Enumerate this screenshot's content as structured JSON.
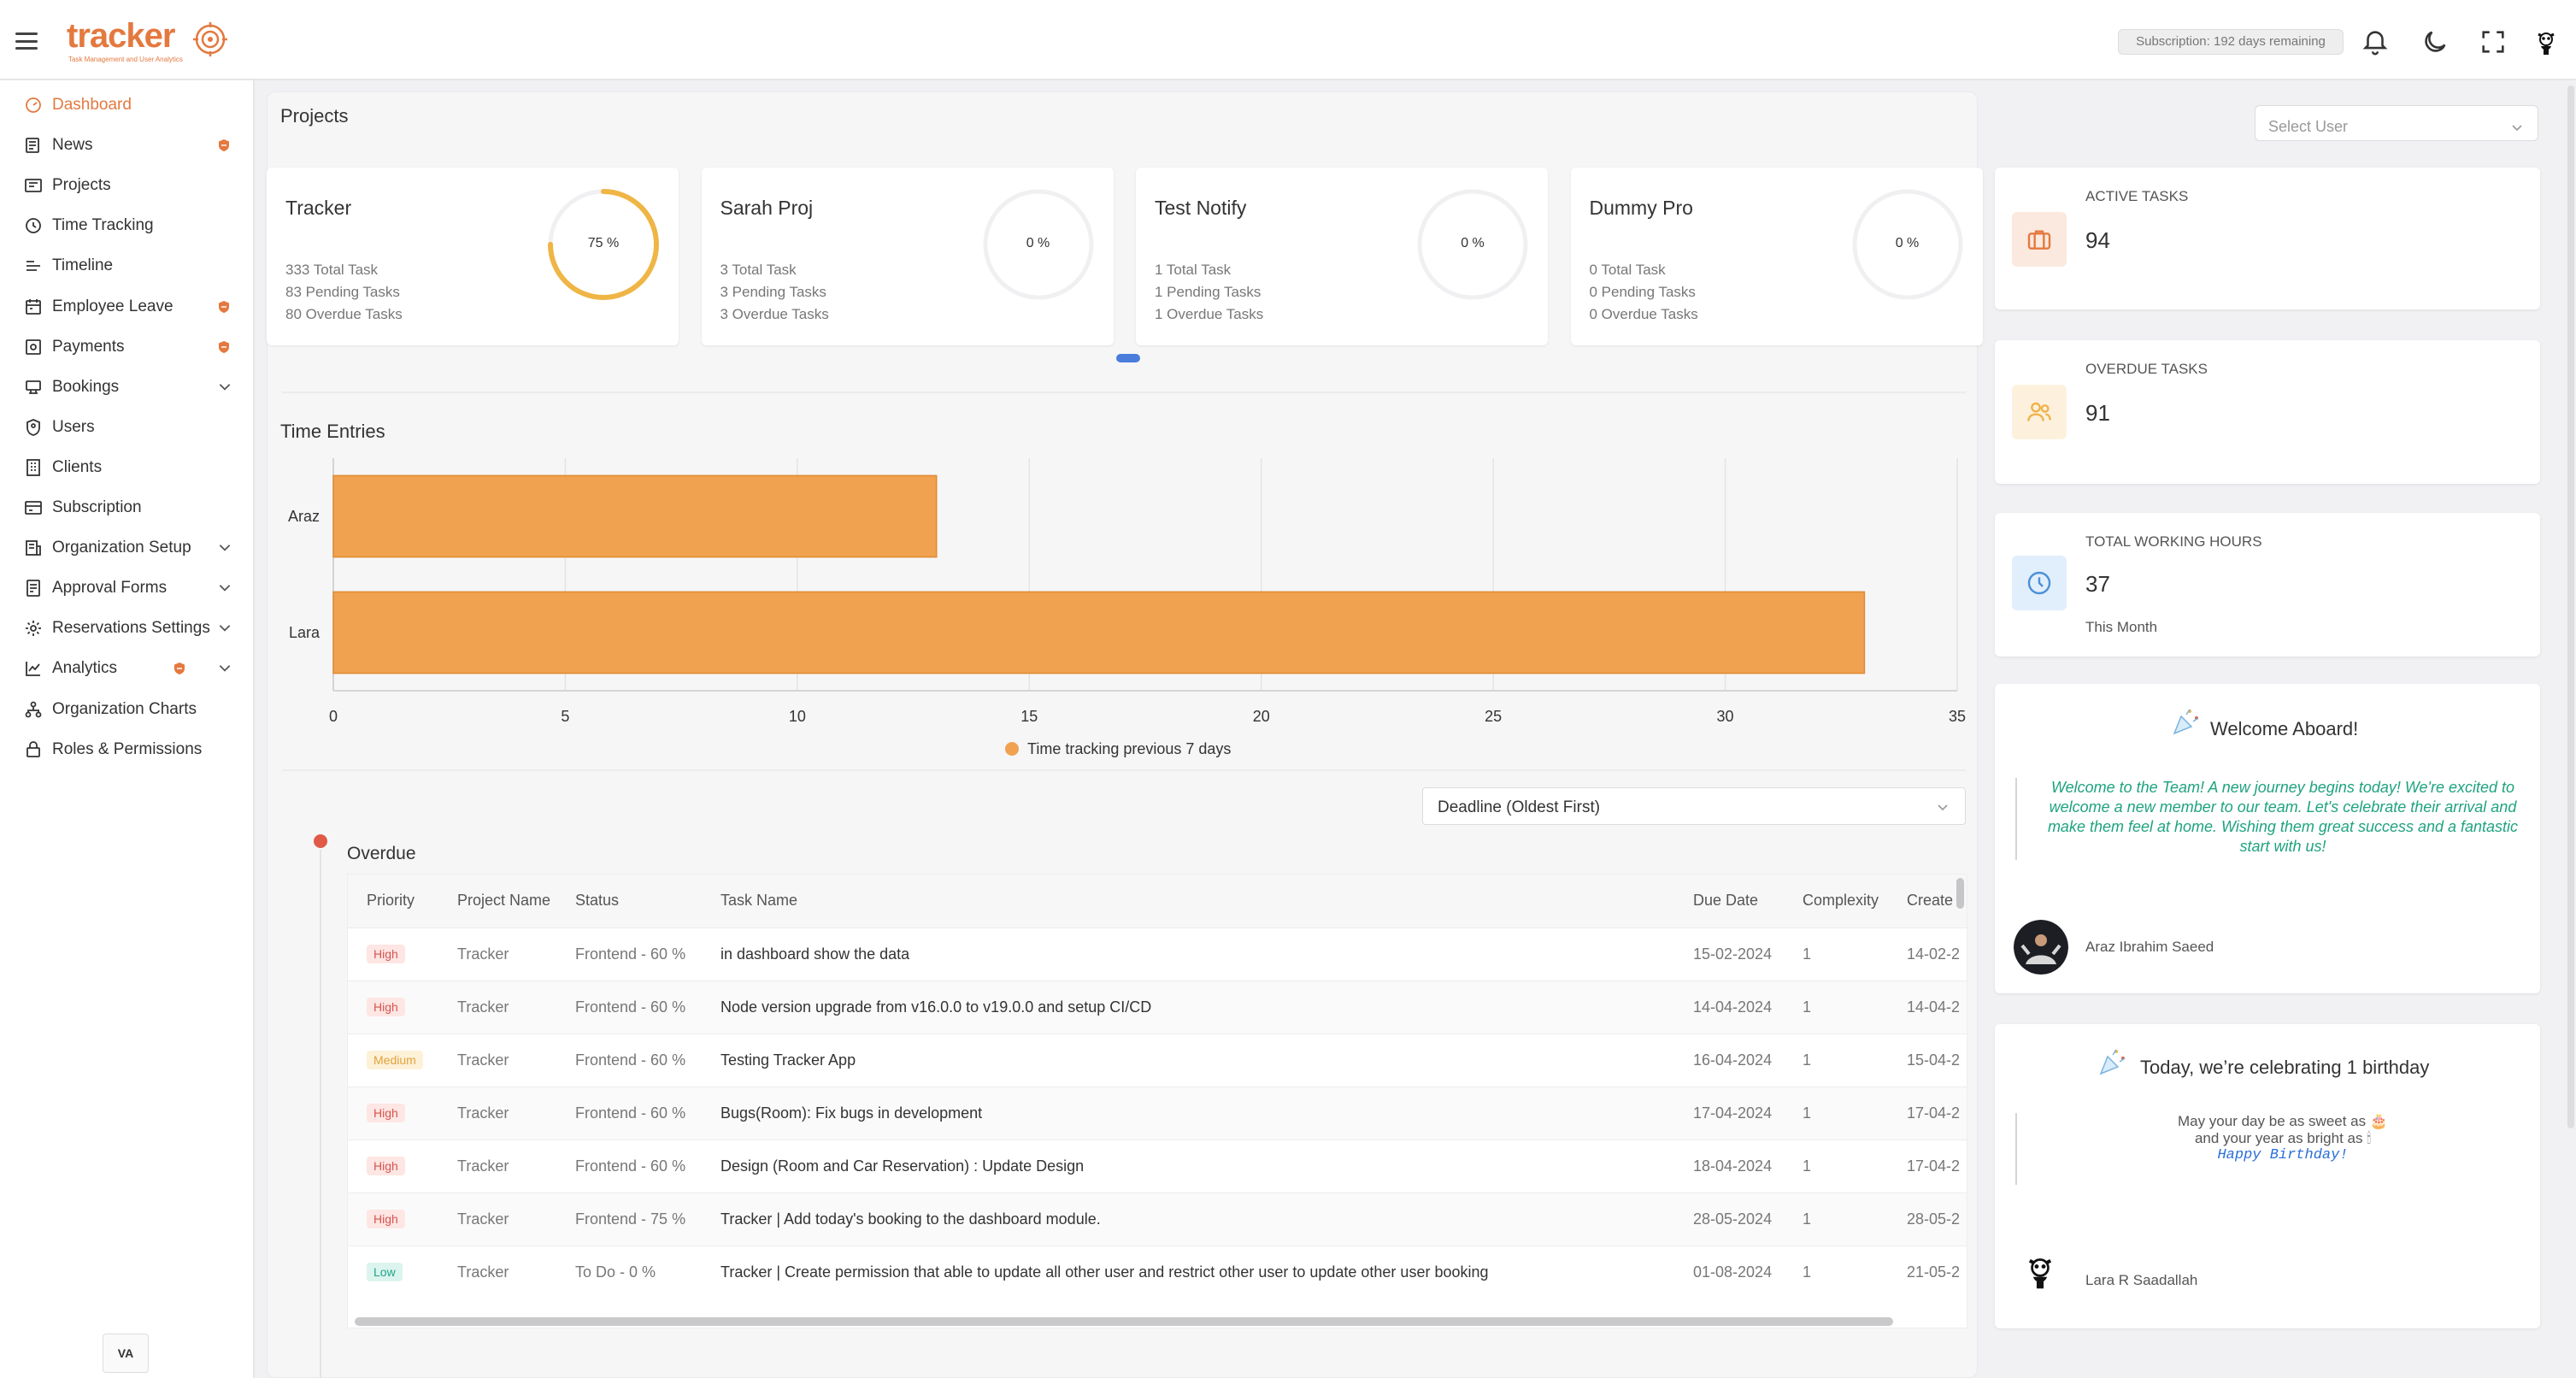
{
  "header": {
    "logo_text": "tracker",
    "logo_subtitle": "Task Management and User Analytics",
    "subscription": "Subscription: 192 days remaining",
    "icons": [
      "bell-icon",
      "moon-icon",
      "fullscreen-icon",
      "user-avatar-icon"
    ]
  },
  "sidebar": {
    "items": [
      {
        "label": "Dashboard",
        "icon": "dashboard-icon",
        "active": true
      },
      {
        "label": "News",
        "icon": "news-icon",
        "badge": true
      },
      {
        "label": "Projects",
        "icon": "projects-icon"
      },
      {
        "label": "Time Tracking",
        "icon": "clock-icon"
      },
      {
        "label": "Timeline",
        "icon": "timeline-icon"
      },
      {
        "label": "Employee Leave",
        "icon": "calendar-icon",
        "badge": true
      },
      {
        "label": "Payments",
        "icon": "payments-icon",
        "badge": true
      },
      {
        "label": "Bookings",
        "icon": "bookings-icon",
        "expandable": true
      },
      {
        "label": "Users",
        "icon": "shield-user-icon"
      },
      {
        "label": "Clients",
        "icon": "building-icon"
      },
      {
        "label": "Subscription",
        "icon": "subscription-icon"
      },
      {
        "label": "Organization Setup",
        "icon": "org-setup-icon",
        "expandable": true
      },
      {
        "label": "Approval Forms",
        "icon": "approval-forms-icon",
        "expandable": true
      },
      {
        "label": "Reservations Settings",
        "icon": "gear-icon",
        "expandable": true
      },
      {
        "label": "Analytics",
        "icon": "analytics-icon",
        "expandable": true,
        "badge": true
      },
      {
        "label": "Organization Charts",
        "icon": "org-chart-icon"
      },
      {
        "label": "Roles & Permissions",
        "icon": "lock-icon"
      }
    ],
    "footer_logo": "VA"
  },
  "projects": {
    "title": "Projects",
    "select_user_placeholder": "Select User",
    "cards": [
      {
        "name": "Tracker",
        "total": "333 Total Task",
        "pending": "83 Pending Tasks",
        "overdue": "80 Overdue Tasks",
        "percent": 75,
        "percent_label": "75 %"
      },
      {
        "name": "Sarah Proj",
        "total": "3 Total Task",
        "pending": "3 Pending Tasks",
        "overdue": "3 Overdue Tasks",
        "percent": 0,
        "percent_label": "0 %"
      },
      {
        "name": "Test Notify",
        "total": "1 Total Task",
        "pending": "1 Pending Tasks",
        "overdue": "1 Overdue Tasks",
        "percent": 0,
        "percent_label": "0 %"
      },
      {
        "name": "Dummy Pro",
        "total": "0 Total Task",
        "pending": "0 Pending Tasks",
        "overdue": "0 Overdue Tasks",
        "percent": 0,
        "percent_label": "0 %"
      }
    ],
    "carousel_pages": 2,
    "carousel_active": 0
  },
  "time_entries": {
    "title": "Time Entries"
  },
  "chart_data": {
    "type": "bar",
    "orientation": "horizontal",
    "categories": [
      "Araz",
      "Lara"
    ],
    "series": [
      {
        "name": "Time tracking previous 7 days",
        "values": [
          13,
          33
        ],
        "color": "#f0a250"
      }
    ],
    "xlim": [
      0,
      35
    ],
    "xticks": [
      0,
      5,
      10,
      15,
      20,
      25,
      30,
      35
    ],
    "grid": true,
    "legend": "bottom"
  },
  "overdue": {
    "sort_value": "Deadline (Oldest First)",
    "title": "Overdue",
    "columns": [
      "Priority",
      "Project Name",
      "Status",
      "Task Name",
      "Due Date",
      "Complexity",
      "Create"
    ],
    "rows": [
      {
        "priority": "High",
        "project": "Tracker",
        "status": "Frontend - 60 %",
        "task": "in dashboard show the data",
        "due": "15-02-2024",
        "complexity": "1",
        "created": "14-02-2"
      },
      {
        "priority": "High",
        "project": "Tracker",
        "status": "Frontend - 60 %",
        "task": "Node version upgrade from v16.0.0 to v19.0.0 and setup CI/CD",
        "due": "14-04-2024",
        "complexity": "1",
        "created": "14-04-2"
      },
      {
        "priority": "Medium",
        "project": "Tracker",
        "status": "Frontend - 60 %",
        "task": "Testing Tracker App",
        "due": "16-04-2024",
        "complexity": "1",
        "created": "15-04-2"
      },
      {
        "priority": "High",
        "project": "Tracker",
        "status": "Frontend - 60 %",
        "task": "Bugs(Room): Fix bugs in development",
        "due": "17-04-2024",
        "complexity": "1",
        "created": "17-04-2"
      },
      {
        "priority": "High",
        "project": "Tracker",
        "status": "Frontend - 60 %",
        "task": "Design (Room and Car Reservation) : Update Design",
        "due": "18-04-2024",
        "complexity": "1",
        "created": "17-04-2"
      },
      {
        "priority": "High",
        "project": "Tracker",
        "status": "Frontend - 75 %",
        "task": "Tracker | Add today's booking to the dashboard module.",
        "due": "28-05-2024",
        "complexity": "1",
        "created": "28-05-2"
      },
      {
        "priority": "Low",
        "project": "Tracker",
        "status": "To Do - 0 %",
        "task": "Tracker | Create permission that able to update all other user and restrict other user to update other user booking",
        "due": "01-08-2024",
        "complexity": "1",
        "created": "21-05-2"
      }
    ]
  },
  "stats": {
    "active_tasks": {
      "label": "ACTIVE TASKS",
      "value": "94",
      "icon": "briefcase-icon",
      "color": "#e4793f"
    },
    "overdue_tasks": {
      "label": "OVERDUE TASKS",
      "value": "91",
      "icon": "users-icon",
      "color": "#f0b24a"
    },
    "working_hours": {
      "label": "TOTAL WORKING HOURS",
      "value": "37",
      "sub": "This Month",
      "icon": "clock-icon",
      "color": "#4a90d9"
    }
  },
  "welcome": {
    "title": "Welcome Aboard!",
    "message": "Welcome to the Team! A new journey begins today! We're excited to welcome a new member to our team. Let's celebrate their arrival and make them feel at home. Wishing them great success and a fantastic start with us!",
    "person": "Araz Ibrahim Saeed"
  },
  "birthday": {
    "title": "Today, we’re celebrating 1 birthday",
    "line1": "May your day be as sweet as 🎂",
    "line2": "and your year as bright as 🕯",
    "line3": "Happy Birthday!",
    "person": "Lara R Saadallah"
  }
}
